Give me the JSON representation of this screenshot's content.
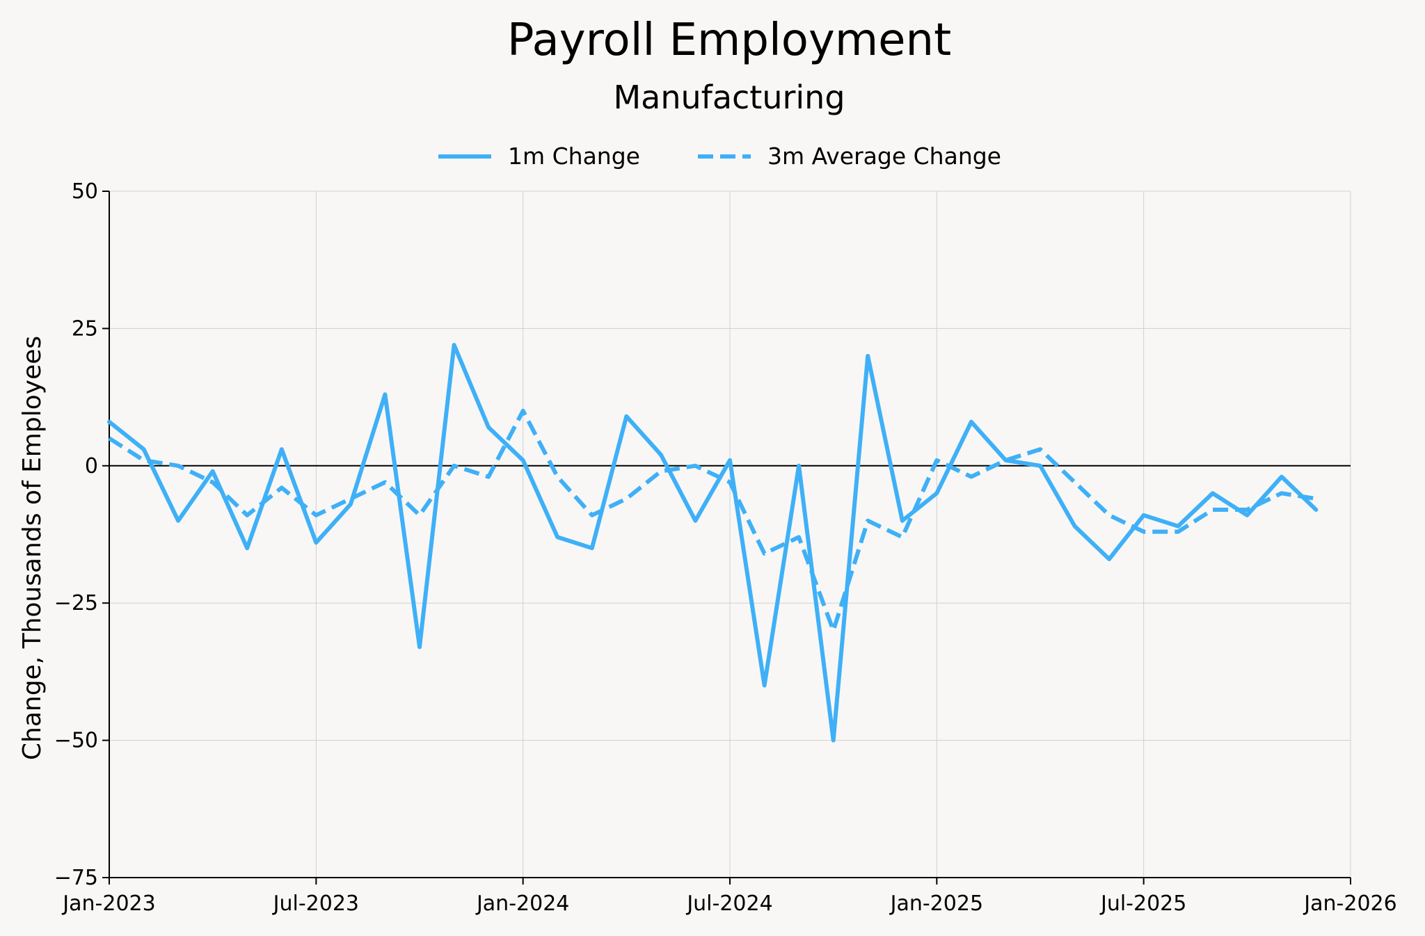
{
  "chart_data": {
    "type": "line",
    "title": "Payroll Employment",
    "subtitle": "Manufacturing",
    "xlabel": "",
    "ylabel": "Change, Thousands of Employees",
    "ylim": [
      -75,
      50
    ],
    "yticks": [
      "50",
      "25",
      "0",
      "−25",
      "−50",
      "−75"
    ],
    "ytick_values": [
      50,
      25,
      0,
      -25,
      -50,
      -75
    ],
    "xlim": [
      "2023-01",
      "2026-01"
    ],
    "xticks": [
      "Jan-2023",
      "Jul-2023",
      "Jan-2024",
      "Jul-2024",
      "Jan-2025",
      "Jul-2025",
      "Jan-2026"
    ],
    "xtick_values": [
      "2023-01",
      "2023-07",
      "2024-01",
      "2024-07",
      "2025-01",
      "2025-07",
      "2026-01"
    ],
    "grid": true,
    "zero_line": true,
    "legend_position": "top-center",
    "x": [
      "2023-01",
      "2023-02",
      "2023-03",
      "2023-04",
      "2023-05",
      "2023-06",
      "2023-07",
      "2023-08",
      "2023-09",
      "2023-10",
      "2023-11",
      "2023-12",
      "2024-01",
      "2024-02",
      "2024-03",
      "2024-04",
      "2024-05",
      "2024-06",
      "2024-07",
      "2024-08",
      "2024-09",
      "2024-10",
      "2024-11",
      "2024-12",
      "2025-01",
      "2025-02",
      "2025-03",
      "2025-04",
      "2025-05",
      "2025-06",
      "2025-07",
      "2025-08",
      "2025-09",
      "2025-10",
      "2025-11",
      "2025-12"
    ],
    "series": [
      {
        "name": "1m Change",
        "style": "solid",
        "color": "#3fb0f7",
        "values": [
          8,
          3,
          -10,
          -1,
          -15,
          3,
          -14,
          -7,
          13,
          -33,
          22,
          7,
          1,
          -13,
          -15,
          9,
          2,
          -10,
          1,
          -40,
          0,
          -50,
          20,
          -10,
          -5,
          8,
          1,
          0,
          -11,
          -17,
          -9,
          -11,
          -5,
          -9,
          -2,
          -8
        ]
      },
      {
        "name": "3m Average Change",
        "style": "dashed",
        "color": "#3fb0f7",
        "values": [
          5,
          1,
          0,
          -3,
          -9,
          -4,
          -9,
          -6,
          -3,
          -9,
          0,
          -2,
          10,
          -2,
          -9,
          -6,
          -1,
          0,
          -3,
          -16,
          -13,
          -30,
          -10,
          -13,
          1,
          -2,
          1,
          3,
          -3,
          -9,
          -12,
          -12,
          -8,
          -8,
          -5,
          -6
        ]
      }
    ]
  }
}
